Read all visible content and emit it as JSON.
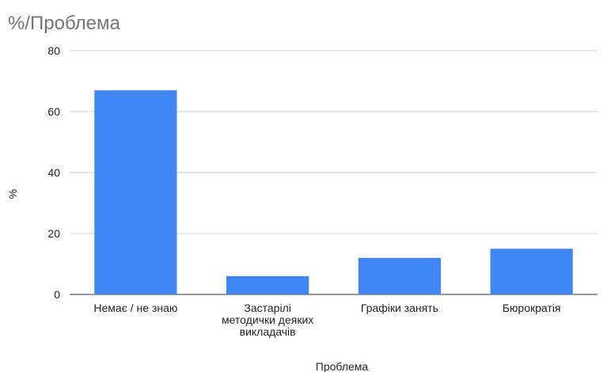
{
  "chart_data": {
    "type": "bar",
    "title": "%/Проблема",
    "xlabel": "Проблема",
    "ylabel": "%",
    "ylim": [
      0,
      80
    ],
    "yticks": [
      0,
      20,
      40,
      60,
      80
    ],
    "categories": [
      [
        "Немає / не знаю"
      ],
      [
        "Застарілі",
        "методички деяких",
        "викладачів"
      ],
      [
        "Графіки занять"
      ],
      [
        "Бюрократія"
      ]
    ],
    "values": [
      67,
      6,
      12,
      15
    ],
    "bar_color": "#4285f4",
    "grid": true,
    "legend": "none"
  }
}
